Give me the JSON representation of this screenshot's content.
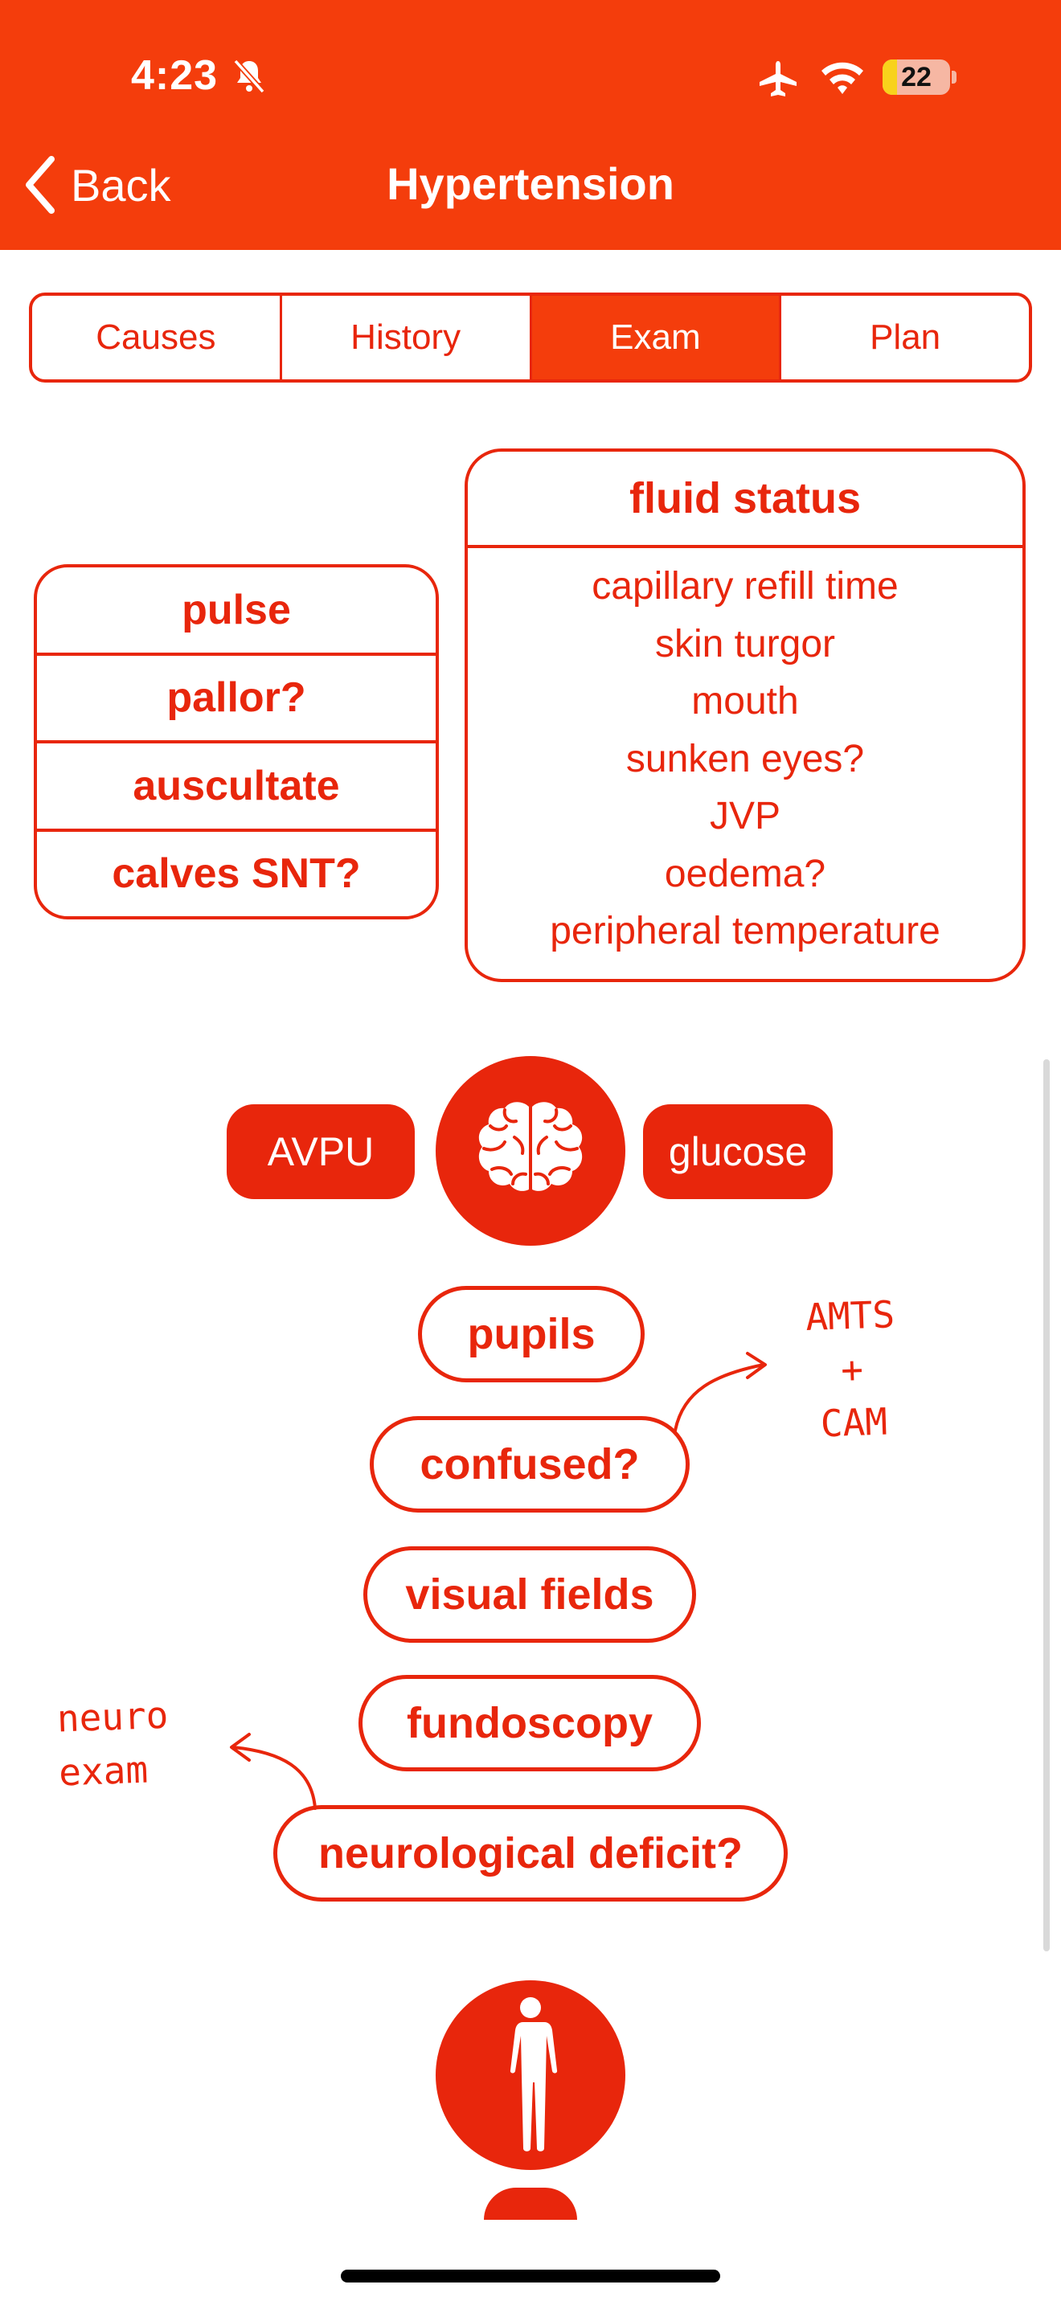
{
  "status_bar": {
    "time": "4:23",
    "battery_level": "22"
  },
  "nav": {
    "back_label": "Back",
    "title": "Hypertension"
  },
  "tabs": [
    {
      "label": "Causes",
      "active": false
    },
    {
      "label": "History",
      "active": false
    },
    {
      "label": "Exam",
      "active": true
    },
    {
      "label": "Plan",
      "active": false
    }
  ],
  "exam_box": {
    "items": [
      "pulse",
      "pallor?",
      "auscultate",
      "calves SNT?"
    ]
  },
  "fluid_status": {
    "title": "fluid status",
    "items": [
      "capillary refill time",
      "skin turgor",
      "mouth",
      "sunken eyes?",
      "JVP",
      "oedema?",
      "peripheral temperature"
    ]
  },
  "neuro": {
    "left_pill": "AVPU",
    "right_pill": "glucose",
    "center_icon": "brain-icon",
    "checks": [
      "pupils",
      "confused?",
      "visual fields",
      "fundoscopy",
      "neurological deficit?"
    ],
    "note_confused": [
      "AMTS",
      "+",
      "CAM"
    ],
    "note_deficit": [
      "neuro",
      "exam"
    ]
  },
  "body_section": {
    "icon": "human-body-icon"
  },
  "colors": {
    "header": "#f43d0c",
    "accent": "#e8260c",
    "battery": "#f8d21c"
  }
}
